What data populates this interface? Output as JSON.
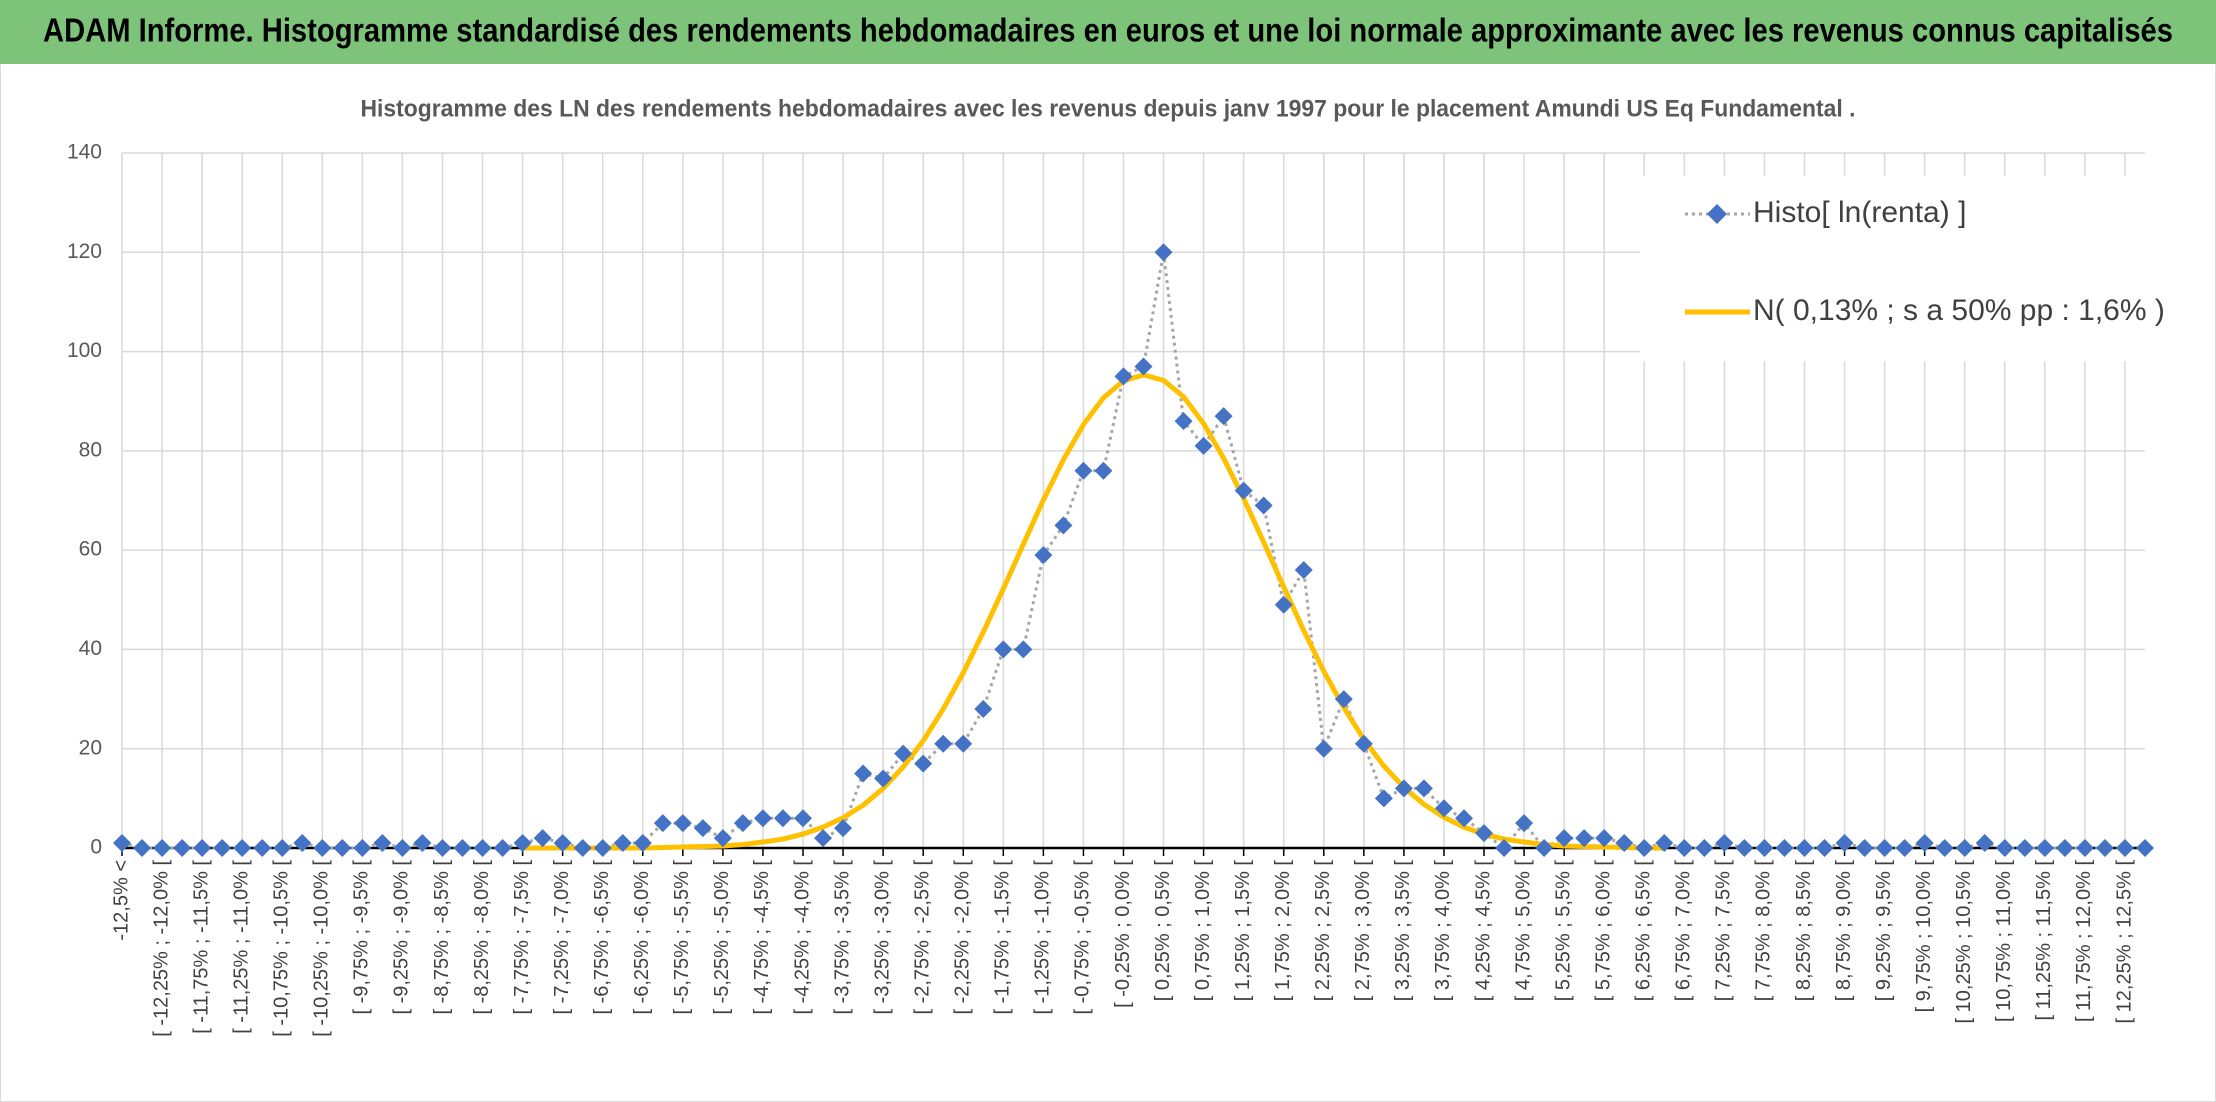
{
  "header": {
    "title": "ADAM Informe. Histogramme standardisé des rendements hebdomadaires en euros et une loi normale approximante avec les revenus connus capitalisés"
  },
  "chart_data": {
    "type": "line",
    "title": "Histogramme des LN des rendements hebdomadaires avec les revenus depuis janv 1997 pour le placement Amundi US Eq Fundamental .",
    "categories": [
      "-12,5% <",
      null,
      "[ -12,25% ; -12,0% [",
      null,
      "[ -11,75% ; -11,5% [",
      null,
      "[ -11,25% ; -11,0% [",
      null,
      "[ -10,75% ; -10,5% [",
      null,
      "[ -10,25% ; -10,0% [",
      null,
      "[ -9,75% ; -9,5% [",
      null,
      "[ -9,25% ; -9,0% [",
      null,
      "[ -8,75% ; -8,5% [",
      null,
      "[ -8,25% ; -8,0% [",
      null,
      "[ -7,75% ; -7,5% [",
      null,
      "[ -7,25% ; -7,0% [",
      null,
      "[ -6,75% ; -6,5% [",
      null,
      "[ -6,25% ; -6,0% [",
      null,
      "[ -5,75% ; -5,5% [",
      null,
      "[ -5,25% ; -5,0% [",
      null,
      "[ -4,75% ; -4,5% [",
      null,
      "[ -4,25% ; -4,0% [",
      null,
      "[ -3,75% ; -3,5% [",
      null,
      "[ -3,25% ; -3,0% [",
      null,
      "[ -2,75% ; -2,5% [",
      null,
      "[ -2,25% ; -2,0% [",
      null,
      "[ -1,75% ; -1,5% [",
      null,
      "[ -1,25% ; -1,0% [",
      null,
      "[ -0,75% ; -0,5% [",
      null,
      "[ -0,25% ; 0,0% [",
      null,
      "[ 0,25% ; 0,5% [",
      null,
      "[ 0,75% ; 1,0% [",
      null,
      "[ 1,25% ; 1,5% [",
      null,
      "[ 1,75% ; 2,0% [",
      null,
      "[ 2,25% ; 2,5% [",
      null,
      "[ 2,75% ; 3,0% [",
      null,
      "[ 3,25% ; 3,5% [",
      null,
      "[ 3,75% ; 4,0% [",
      null,
      "[ 4,25% ; 4,5% [",
      null,
      "[ 4,75% ; 5,0% [",
      null,
      "[ 5,25% ; 5,5% [",
      null,
      "[ 5,75% ; 6,0% [",
      null,
      "[ 6,25% ; 6,5% [",
      null,
      "[ 6,75% ; 7,0% [",
      null,
      "[ 7,25% ; 7,5% [",
      null,
      "[ 7,75% ; 8,0% [",
      null,
      "[ 8,25% ; 8,5% [",
      null,
      "[ 8,75% ; 9,0% [",
      null,
      "[ 9,25% ; 9,5% [",
      null,
      "[ 9,75% ; 10,0% [",
      null,
      "[ 10,25% ; 10,5% [",
      null,
      "[ 10,75% ; 11,0% [",
      null,
      "[ 11,25% ; 11,5% [",
      null,
      "[ 11,75% ; 12,0% [",
      null,
      "[ 12,25% ; 12,5% [",
      null
    ],
    "series": [
      {
        "name": "Histo[ ln(renta) ]",
        "color": "#4472c4",
        "line_color": "#a6a6a6",
        "values": [
          1,
          0,
          0,
          0,
          0,
          0,
          0,
          0,
          0,
          1,
          0,
          0,
          0,
          1,
          0,
          1,
          0,
          0,
          0,
          0,
          1,
          2,
          1,
          0,
          0,
          1,
          1,
          5,
          5,
          4,
          2,
          5,
          6,
          6,
          6,
          2,
          4,
          15,
          14,
          19,
          17,
          21,
          21,
          28,
          40,
          40,
          59,
          65,
          76,
          76,
          95,
          97,
          120,
          86,
          81,
          87,
          72,
          69,
          49,
          56,
          20,
          30,
          21,
          10,
          12,
          12,
          8,
          6,
          3,
          0,
          5,
          0,
          2,
          2,
          2,
          1,
          0,
          1,
          0,
          0,
          1,
          0,
          0,
          0,
          0,
          0,
          1,
          0,
          0,
          0,
          1,
          0,
          0,
          1,
          0,
          0,
          0,
          0,
          0,
          0,
          0,
          0
        ]
      },
      {
        "name": "N( 0,13% ; s a 50% pp : 1,6% )",
        "color": "#ffc000",
        "values": [
          null,
          null,
          null,
          null,
          null,
          null,
          null,
          null,
          null,
          null,
          null,
          null,
          null,
          null,
          null,
          null,
          null,
          null,
          null,
          null,
          0,
          0,
          0,
          0,
          0,
          0,
          0,
          0.1,
          0.2,
          0.3,
          0.4,
          0.7,
          1.2,
          1.8,
          2.8,
          4.2,
          6.1,
          8.6,
          12.0,
          16.3,
          21.6,
          28.0,
          35.3,
          43.5,
          52.2,
          61.2,
          70.1,
          78.2,
          85.3,
          90.7,
          94.1,
          95.3,
          94.2,
          90.9,
          85.5,
          78.5,
          70.4,
          61.6,
          52.6,
          43.8,
          35.6,
          28.3,
          21.9,
          16.5,
          12.2,
          8.8,
          6.2,
          4.2,
          2.8,
          1.8,
          1.2,
          0.7,
          0.4,
          0.3,
          0.2,
          0.1,
          0,
          0,
          null,
          null,
          null,
          null,
          null,
          null,
          null,
          null,
          null,
          null,
          null,
          null,
          null,
          null,
          null,
          null,
          null,
          null,
          null,
          null,
          null,
          null,
          null,
          null
        ]
      }
    ],
    "ylim": [
      0,
      140
    ],
    "yticks": [
      0,
      20,
      40,
      60,
      80,
      100,
      120,
      140
    ],
    "grid": true,
    "legend": "upper right"
  }
}
